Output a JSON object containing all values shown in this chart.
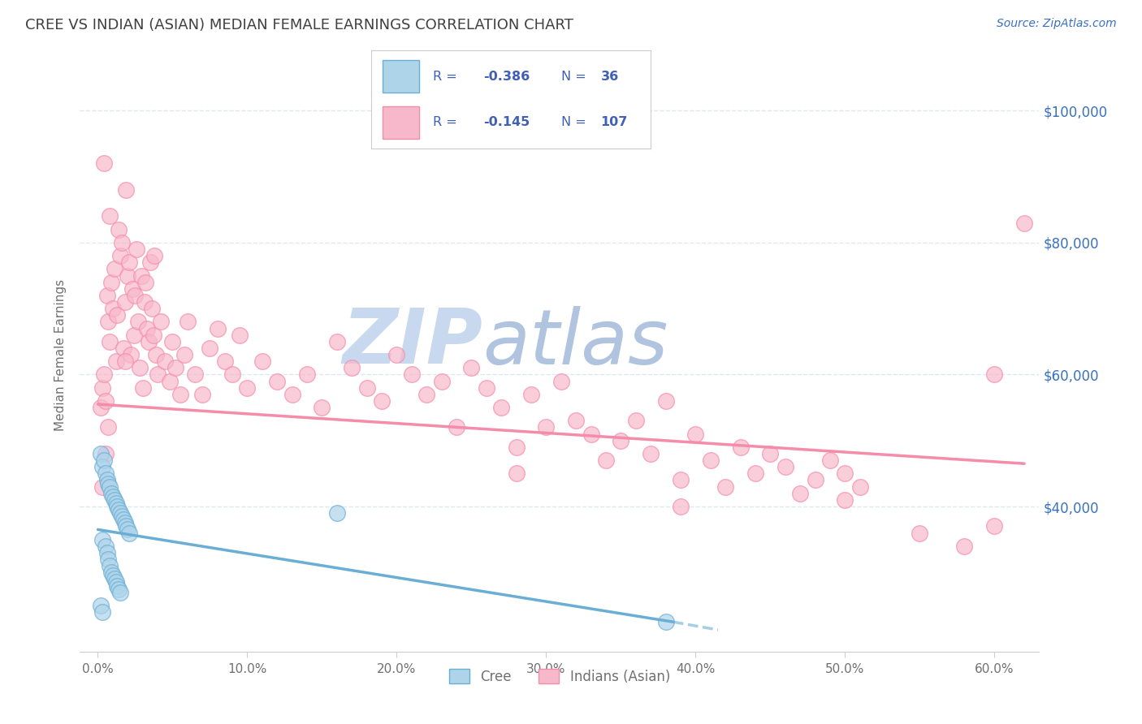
{
  "title": "CREE VS INDIAN (ASIAN) MEDIAN FEMALE EARNINGS CORRELATION CHART",
  "source": "Source: ZipAtlas.com",
  "ylabel": "Median Female Earnings",
  "xlabel_ticks": [
    "0.0%",
    "10.0%",
    "20.0%",
    "30.0%",
    "40.0%",
    "50.0%",
    "60.0%"
  ],
  "xlabel_vals": [
    0.0,
    0.1,
    0.2,
    0.3,
    0.4,
    0.5,
    0.6
  ],
  "ytick_labels": [
    "$40,000",
    "$60,000",
    "$80,000",
    "$100,000"
  ],
  "ytick_vals": [
    40000,
    60000,
    80000,
    100000
  ],
  "ylim": [
    18000,
    108000
  ],
  "xlim": [
    -0.012,
    0.63
  ],
  "cree_color": "#6aaed6",
  "indian_color": "#f48caa",
  "cree_face_color": "#aed4ea",
  "indian_face_color": "#f8b8cc",
  "legend_box_color": "#4060b8",
  "watermark_zip_color": "#c8d8ec",
  "watermark_atlas_color": "#b0c8e8",
  "title_color": "#404040",
  "axis_color": "#707070",
  "grid_color": "#dde8f0",
  "right_label_color": "#3870c0",
  "background_color": "#ffffff",
  "cree_dots": [
    [
      0.002,
      48000
    ],
    [
      0.003,
      46000
    ],
    [
      0.004,
      47000
    ],
    [
      0.005,
      45000
    ],
    [
      0.006,
      44000
    ],
    [
      0.007,
      43500
    ],
    [
      0.008,
      43000
    ],
    [
      0.009,
      42000
    ],
    [
      0.01,
      41500
    ],
    [
      0.011,
      41000
    ],
    [
      0.012,
      40500
    ],
    [
      0.013,
      40000
    ],
    [
      0.014,
      39500
    ],
    [
      0.015,
      39000
    ],
    [
      0.016,
      38500
    ],
    [
      0.017,
      38000
    ],
    [
      0.018,
      37500
    ],
    [
      0.019,
      37000
    ],
    [
      0.02,
      36500
    ],
    [
      0.021,
      36000
    ],
    [
      0.003,
      35000
    ],
    [
      0.005,
      34000
    ],
    [
      0.006,
      33000
    ],
    [
      0.007,
      32000
    ],
    [
      0.008,
      31000
    ],
    [
      0.009,
      30000
    ],
    [
      0.01,
      29500
    ],
    [
      0.011,
      29000
    ],
    [
      0.012,
      28500
    ],
    [
      0.013,
      28000
    ],
    [
      0.014,
      27500
    ],
    [
      0.015,
      27000
    ],
    [
      0.002,
      25000
    ],
    [
      0.003,
      24000
    ],
    [
      0.16,
      39000
    ],
    [
      0.38,
      22500
    ]
  ],
  "indian_dots": [
    [
      0.002,
      55000
    ],
    [
      0.003,
      58000
    ],
    [
      0.004,
      60000
    ],
    [
      0.005,
      56000
    ],
    [
      0.006,
      72000
    ],
    [
      0.007,
      68000
    ],
    [
      0.008,
      65000
    ],
    [
      0.009,
      74000
    ],
    [
      0.01,
      70000
    ],
    [
      0.011,
      76000
    ],
    [
      0.012,
      62000
    ],
    [
      0.013,
      69000
    ],
    [
      0.014,
      82000
    ],
    [
      0.015,
      78000
    ],
    [
      0.016,
      80000
    ],
    [
      0.017,
      64000
    ],
    [
      0.018,
      71000
    ],
    [
      0.019,
      88000
    ],
    [
      0.02,
      75000
    ],
    [
      0.021,
      77000
    ],
    [
      0.022,
      63000
    ],
    [
      0.023,
      73000
    ],
    [
      0.024,
      66000
    ],
    [
      0.025,
      72000
    ],
    [
      0.026,
      79000
    ],
    [
      0.027,
      68000
    ],
    [
      0.028,
      61000
    ],
    [
      0.029,
      75000
    ],
    [
      0.03,
      58000
    ],
    [
      0.031,
      71000
    ],
    [
      0.032,
      74000
    ],
    [
      0.033,
      67000
    ],
    [
      0.034,
      65000
    ],
    [
      0.035,
      77000
    ],
    [
      0.036,
      70000
    ],
    [
      0.037,
      66000
    ],
    [
      0.038,
      78000
    ],
    [
      0.039,
      63000
    ],
    [
      0.04,
      60000
    ],
    [
      0.042,
      68000
    ],
    [
      0.045,
      62000
    ],
    [
      0.048,
      59000
    ],
    [
      0.05,
      65000
    ],
    [
      0.052,
      61000
    ],
    [
      0.055,
      57000
    ],
    [
      0.058,
      63000
    ],
    [
      0.06,
      68000
    ],
    [
      0.065,
      60000
    ],
    [
      0.07,
      57000
    ],
    [
      0.075,
      64000
    ],
    [
      0.08,
      67000
    ],
    [
      0.085,
      62000
    ],
    [
      0.09,
      60000
    ],
    [
      0.095,
      66000
    ],
    [
      0.1,
      58000
    ],
    [
      0.11,
      62000
    ],
    [
      0.12,
      59000
    ],
    [
      0.13,
      57000
    ],
    [
      0.14,
      60000
    ],
    [
      0.15,
      55000
    ],
    [
      0.16,
      65000
    ],
    [
      0.17,
      61000
    ],
    [
      0.18,
      58000
    ],
    [
      0.19,
      56000
    ],
    [
      0.2,
      63000
    ],
    [
      0.21,
      60000
    ],
    [
      0.22,
      57000
    ],
    [
      0.23,
      59000
    ],
    [
      0.24,
      52000
    ],
    [
      0.25,
      61000
    ],
    [
      0.26,
      58000
    ],
    [
      0.27,
      55000
    ],
    [
      0.28,
      49000
    ],
    [
      0.29,
      57000
    ],
    [
      0.3,
      52000
    ],
    [
      0.31,
      59000
    ],
    [
      0.32,
      53000
    ],
    [
      0.33,
      51000
    ],
    [
      0.34,
      47000
    ],
    [
      0.35,
      50000
    ],
    [
      0.36,
      53000
    ],
    [
      0.37,
      48000
    ],
    [
      0.38,
      56000
    ],
    [
      0.39,
      44000
    ],
    [
      0.4,
      51000
    ],
    [
      0.41,
      47000
    ],
    [
      0.42,
      43000
    ],
    [
      0.43,
      49000
    ],
    [
      0.44,
      45000
    ],
    [
      0.45,
      48000
    ],
    [
      0.46,
      46000
    ],
    [
      0.47,
      42000
    ],
    [
      0.48,
      44000
    ],
    [
      0.49,
      47000
    ],
    [
      0.5,
      45000
    ],
    [
      0.51,
      43000
    ],
    [
      0.004,
      92000
    ],
    [
      0.008,
      84000
    ],
    [
      0.018,
      62000
    ],
    [
      0.55,
      36000
    ],
    [
      0.58,
      34000
    ],
    [
      0.6,
      37000
    ],
    [
      0.62,
      83000
    ],
    [
      0.005,
      48000
    ],
    [
      0.007,
      52000
    ],
    [
      0.003,
      43000
    ],
    [
      0.28,
      45000
    ],
    [
      0.39,
      40000
    ],
    [
      0.5,
      41000
    ],
    [
      0.6,
      60000
    ]
  ],
  "cree_line": {
    "x0": 0.0,
    "y0": 36500,
    "x1": 0.385,
    "y1": 22500
  },
  "indian_line": {
    "x0": 0.0,
    "y0": 55500,
    "x1": 0.62,
    "y1": 46500
  }
}
